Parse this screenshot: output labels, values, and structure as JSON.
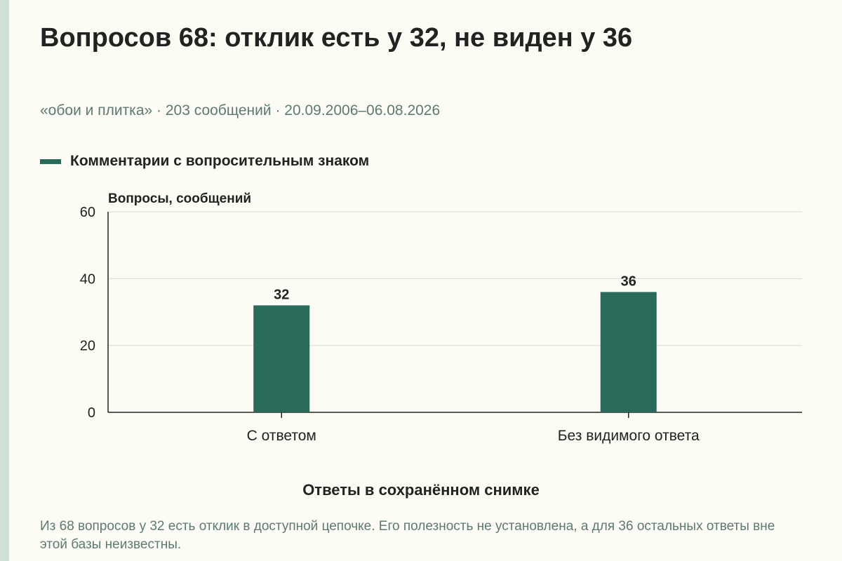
{
  "title": "Вопросов 68: отклик есть у 32, не виден у 36",
  "subtitle": "«обои и плитка» · 203 сообщений · 20.09.2006–06.08.2026",
  "footnote": "Из 68 вопросов у 32 есть отклик в доступной цепочке. Его полезность не установлена, а для 36 остальных ответы вне этой базы неизвестны.",
  "colors": {
    "accent": "#2a6a5a",
    "background": "#fdfcf4",
    "left_strip": "#cfe2da",
    "muted_text": "#5c7a72",
    "grid": "#d9d9d2",
    "axis": "#222222"
  },
  "chart_data": {
    "type": "bar",
    "title": "Вопросов 68: отклик есть у 32, не виден у 36",
    "subtitle": "«обои и плитка» · 203 сообщений · 20.09.2006–06.08.2026",
    "xlabel": "Ответы в сохранённом снимке",
    "ylabel": "Вопросы, сообщений",
    "categories": [
      "С ответом",
      "Без видимого ответа"
    ],
    "series": [
      {
        "name": "Комментарии с вопросительным знаком",
        "values": [
          32,
          36
        ]
      }
    ],
    "ylim": [
      0,
      60
    ],
    "yticks": [
      0,
      20,
      40,
      60
    ],
    "grid": true,
    "legend": "top-left",
    "data_labels": true
  }
}
